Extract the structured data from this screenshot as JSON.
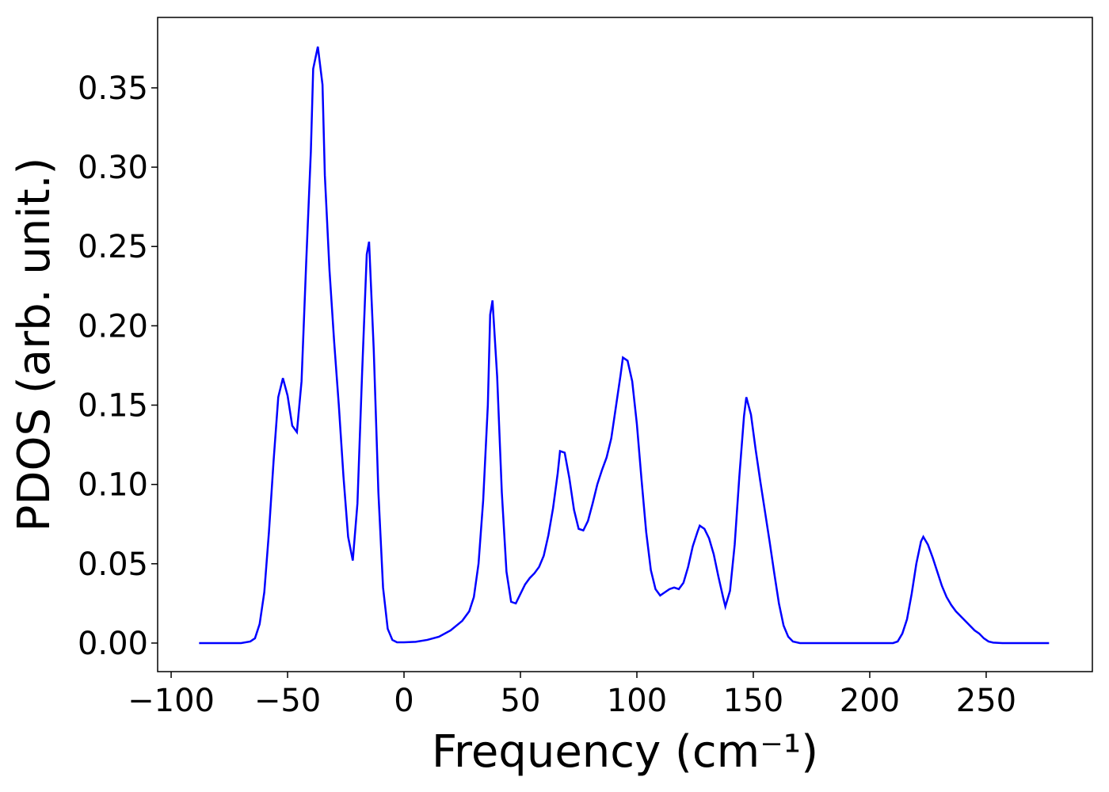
{
  "chart_data": {
    "type": "line",
    "xlabel": "Frequency (cm⁻¹)",
    "ylabel": "PDOS (arb. unit.)",
    "x": [
      -88,
      -70,
      -66,
      -64,
      -62,
      -60,
      -58,
      -56,
      -54,
      -52,
      -50,
      -48,
      -46,
      -44,
      -42,
      -40,
      -39,
      -37,
      -35,
      -34,
      -32,
      -30,
      -28,
      -26,
      -24,
      -22,
      -20,
      -18,
      -16,
      -15,
      -13,
      -11,
      -9,
      -7,
      -5,
      -3,
      0,
      5,
      10,
      15,
      20,
      25,
      28,
      30,
      32,
      34,
      36,
      37,
      38,
      40,
      42,
      44,
      46,
      48,
      50,
      52,
      54,
      56,
      58,
      60,
      62,
      64,
      66,
      67,
      69,
      71,
      73,
      75,
      77,
      79,
      81,
      83,
      85,
      87,
      89,
      91,
      93,
      94,
      96,
      98,
      100,
      102,
      104,
      106,
      108,
      110,
      112,
      114,
      116,
      118,
      120,
      122,
      124,
      126,
      127,
      129,
      131,
      133,
      135,
      137,
      138,
      140,
      142,
      144,
      146,
      147,
      149,
      151,
      153,
      155,
      157,
      159,
      161,
      163,
      165,
      167,
      170,
      210,
      212,
      214,
      216,
      218,
      220,
      222,
      223,
      225,
      227,
      229,
      231,
      233,
      235,
      237,
      239,
      241,
      243,
      245,
      247,
      249,
      251,
      253,
      257,
      277
    ],
    "series": [
      {
        "name": "PDOS",
        "color": "#0000ff",
        "values": [
          0,
          0,
          0.001,
          0.003,
          0.012,
          0.032,
          0.07,
          0.115,
          0.155,
          0.167,
          0.156,
          0.137,
          0.133,
          0.165,
          0.24,
          0.31,
          0.362,
          0.376,
          0.352,
          0.295,
          0.235,
          0.19,
          0.15,
          0.105,
          0.067,
          0.052,
          0.088,
          0.17,
          0.245,
          0.253,
          0.185,
          0.095,
          0.035,
          0.009,
          0.002,
          0.0005,
          0.0005,
          0.0008,
          0.002,
          0.004,
          0.008,
          0.014,
          0.02,
          0.029,
          0.05,
          0.09,
          0.15,
          0.207,
          0.216,
          0.168,
          0.095,
          0.045,
          0.026,
          0.025,
          0.031,
          0.037,
          0.041,
          0.044,
          0.048,
          0.055,
          0.068,
          0.085,
          0.107,
          0.121,
          0.12,
          0.104,
          0.084,
          0.072,
          0.071,
          0.077,
          0.088,
          0.1,
          0.109,
          0.117,
          0.129,
          0.149,
          0.169,
          0.18,
          0.178,
          0.165,
          0.138,
          0.103,
          0.07,
          0.046,
          0.034,
          0.03,
          0.032,
          0.034,
          0.035,
          0.034,
          0.038,
          0.048,
          0.061,
          0.07,
          0.074,
          0.072,
          0.066,
          0.056,
          0.042,
          0.029,
          0.023,
          0.033,
          0.062,
          0.105,
          0.143,
          0.155,
          0.144,
          0.122,
          0.102,
          0.083,
          0.064,
          0.044,
          0.025,
          0.011,
          0.004,
          0.001,
          0,
          0,
          0.001,
          0.006,
          0.015,
          0.031,
          0.05,
          0.064,
          0.067,
          0.062,
          0.054,
          0.045,
          0.036,
          0.029,
          0.024,
          0.02,
          0.017,
          0.014,
          0.011,
          0.008,
          0.006,
          0.003,
          0.001,
          0.0003,
          0,
          0
        ]
      }
    ],
    "xlim": [
      -105.8,
      295.6
    ],
    "ylim": [
      -0.018,
      0.3944
    ],
    "xticks": [
      {
        "value": -100,
        "label": "−100"
      },
      {
        "value": -50,
        "label": "−50"
      },
      0,
      50,
      100,
      150,
      200,
      250
    ],
    "yticks": [
      {
        "value": 0,
        "label": "0.00"
      },
      {
        "value": 0.05,
        "label": "0.05"
      },
      {
        "value": 0.1,
        "label": "0.10"
      },
      {
        "value": 0.15,
        "label": "0.15"
      },
      {
        "value": 0.2,
        "label": "0.20"
      },
      {
        "value": 0.25,
        "label": "0.25"
      },
      {
        "value": 0.3,
        "label": "0.30"
      },
      {
        "value": 0.35,
        "label": "0.35"
      }
    ],
    "grid": false
  }
}
